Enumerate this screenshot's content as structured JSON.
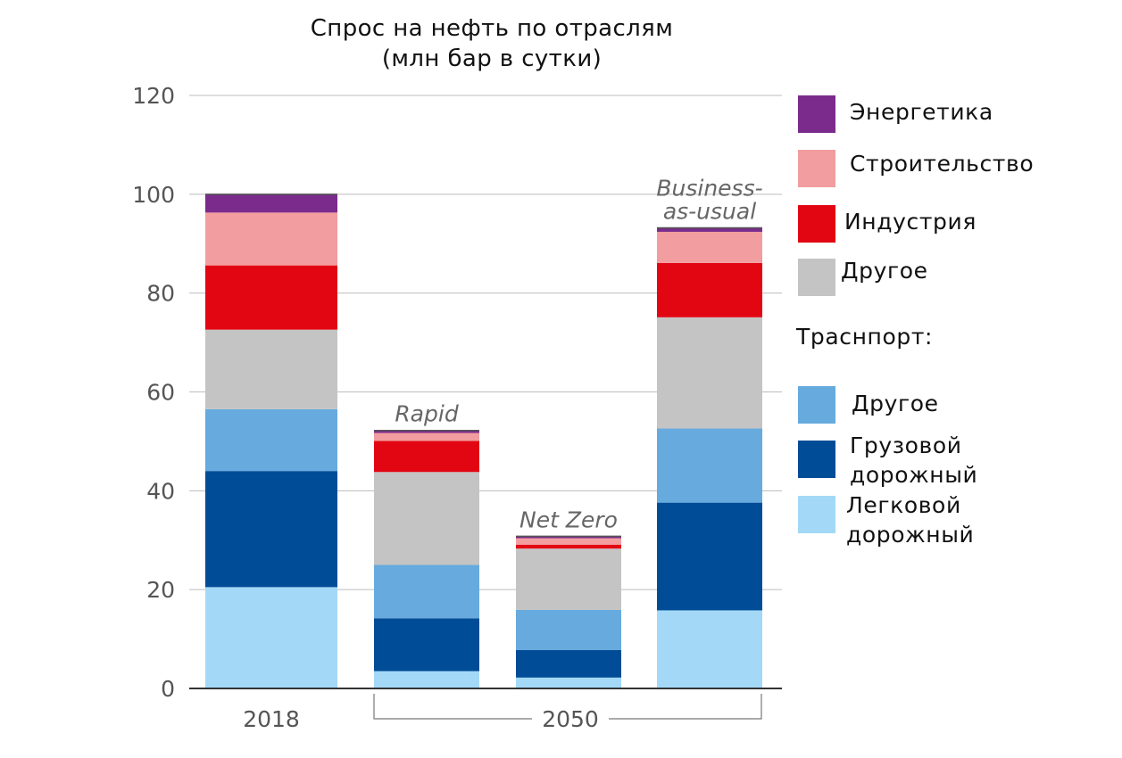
{
  "chart_data": {
    "type": "bar",
    "stacked": true,
    "title_lines": [
      "Спрос на нефть по отраслям",
      "(млн бар в сутки)"
    ],
    "ylim": [
      0,
      120
    ],
    "yticks": [
      0,
      20,
      40,
      60,
      80,
      100,
      120
    ],
    "grid": true,
    "legend_position": "right",
    "categories": [
      "2018",
      "Rapid",
      "Net Zero",
      "Business-as-usual"
    ],
    "bar_notes": [
      "",
      "Rapid",
      "Net Zero",
      "Business-\nas-usual"
    ],
    "x_labels": [
      "2018",
      "2050"
    ],
    "series": [
      {
        "key": "passenger",
        "name": "Легковой дорожный",
        "color": "#a3d9f7",
        "values": [
          20.5,
          3.5,
          2.2,
          15.8
        ]
      },
      {
        "key": "freight",
        "name": "Грузовой дорожный",
        "color": "#004c97",
        "values": [
          23.5,
          10.7,
          5.6,
          21.8
        ]
      },
      {
        "key": "transport_other",
        "name": "Другое",
        "color": "#66aade",
        "values": [
          12.5,
          10.8,
          8.1,
          15.0
        ]
      },
      {
        "key": "other",
        "name": "Другое",
        "color": "#c4c4c4",
        "values": [
          16.1,
          18.8,
          12.4,
          22.5
        ]
      },
      {
        "key": "industry",
        "name": "Индустрия",
        "color": "#e20613",
        "values": [
          13.0,
          6.3,
          0.8,
          11.0
        ]
      },
      {
        "key": "buildings",
        "name": "Строительство",
        "color": "#f29d9f",
        "values": [
          10.7,
          1.6,
          1.3,
          6.3
        ]
      },
      {
        "key": "power",
        "name": "Энергетика",
        "color": "#7a2b8b",
        "values": [
          3.7,
          0.5,
          0.4,
          0.8
        ]
      }
    ],
    "legend": {
      "items_top": [
        {
          "label": "Энергетика",
          "color": "#7a2b8b"
        },
        {
          "label": "Строительство",
          "color": "#f29d9f"
        },
        {
          "label": "Индустрия",
          "color": "#e20613"
        },
        {
          "label": "Другое",
          "color": "#c4c4c4"
        }
      ],
      "transport_header": "Траснпорт:",
      "items_transport": [
        {
          "label": "Другое",
          "color": "#66aade"
        },
        {
          "label": "Грузовой\nдорожный",
          "color": "#004c97"
        },
        {
          "label": "Легковой\nдорожный",
          "color": "#a3d9f7"
        }
      ]
    }
  }
}
